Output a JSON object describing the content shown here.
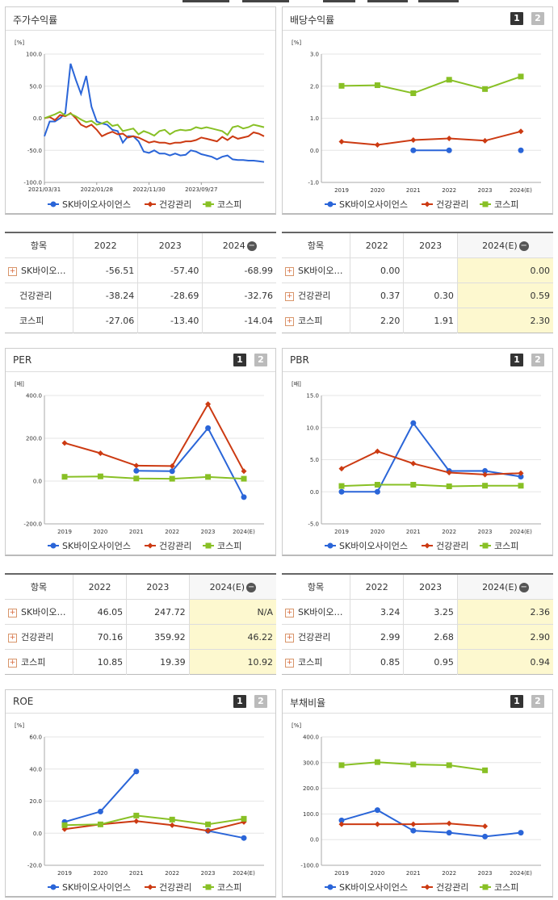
{
  "colors": {
    "sk": "#2a65d8",
    "health": "#cc3a12",
    "kospi": "#88c025"
  },
  "legend": [
    "SK바이오사이언스",
    "건강관리",
    "코스피"
  ],
  "stock": {
    "title": "주가수익률",
    "chart_data": {
      "type": "line",
      "unit": "[%]",
      "ylim": [
        -100,
        100
      ],
      "yticks": [
        100.0,
        50.0,
        0.0,
        -50.0,
        -100.0
      ],
      "xticks": [
        "2021/03/31",
        "2022/01/28",
        "2022/11/30",
        "2023/09/27"
      ],
      "xtick_pos": [
        0,
        50,
        100,
        150
      ],
      "x_max": 210,
      "series": [
        {
          "name": "SK바이오사이언스",
          "color": "#2a65d8",
          "x": [
            0,
            5,
            10,
            15,
            20,
            25,
            30,
            35,
            40,
            45,
            50,
            55,
            60,
            65,
            70,
            75,
            80,
            85,
            90,
            95,
            100,
            105,
            110,
            115,
            120,
            125,
            130,
            135,
            140,
            145,
            150,
            155,
            160,
            165,
            170,
            175,
            180,
            185,
            190,
            195,
            200,
            205,
            210
          ],
          "values": [
            -28,
            -5,
            -5,
            0,
            8,
            85,
            60,
            38,
            66,
            18,
            -5,
            -8,
            -10,
            -18,
            -20,
            -38,
            -28,
            -28,
            -36,
            -52,
            -54,
            -50,
            -55,
            -55,
            -58,
            -55,
            -58,
            -57,
            -50,
            -52,
            -56,
            -58,
            -60,
            -64,
            -60,
            -58,
            -64,
            -65,
            -65,
            -66,
            -66,
            -67,
            -68
          ]
        },
        {
          "name": "건강관리",
          "color": "#cc3a12",
          "x": [
            0,
            5,
            10,
            15,
            20,
            25,
            30,
            35,
            40,
            45,
            50,
            55,
            60,
            65,
            70,
            75,
            80,
            85,
            90,
            95,
            100,
            105,
            110,
            115,
            120,
            125,
            130,
            135,
            140,
            145,
            150,
            155,
            160,
            165,
            170,
            175,
            180,
            185,
            190,
            195,
            200,
            205,
            210
          ],
          "values": [
            0,
            2,
            -3,
            5,
            3,
            8,
            0,
            -10,
            -14,
            -10,
            -18,
            -28,
            -24,
            -21,
            -25,
            -24,
            -30,
            -28,
            -30,
            -34,
            -38,
            -36,
            -38,
            -38,
            -40,
            -38,
            -38,
            -36,
            -36,
            -34,
            -30,
            -32,
            -34,
            -36,
            -29,
            -34,
            -28,
            -32,
            -30,
            -28,
            -22,
            -24,
            -28
          ]
        },
        {
          "name": "코스피",
          "color": "#88c025",
          "x": [
            0,
            5,
            10,
            15,
            20,
            25,
            30,
            35,
            40,
            45,
            50,
            55,
            60,
            65,
            70,
            75,
            80,
            85,
            90,
            95,
            100,
            105,
            110,
            115,
            120,
            125,
            130,
            135,
            140,
            145,
            150,
            155,
            160,
            165,
            170,
            175,
            180,
            185,
            190,
            195,
            200,
            205,
            210
          ],
          "values": [
            0,
            3,
            6,
            10,
            4,
            7,
            3,
            -2,
            -6,
            -4,
            -10,
            -8,
            -5,
            -12,
            -10,
            -20,
            -18,
            -16,
            -25,
            -20,
            -23,
            -27,
            -20,
            -18,
            -25,
            -20,
            -18,
            -19,
            -18,
            -14,
            -16,
            -14,
            -16,
            -18,
            -20,
            -26,
            -14,
            -12,
            -16,
            -14,
            -10,
            -12,
            -14
          ]
        }
      ]
    },
    "table": {
      "header": [
        "항목",
        "2022",
        "2023",
        "2024"
      ],
      "rows": [
        {
          "label": "SK바이오…",
          "plus": true,
          "values": [
            "-56.51",
            "-57.40",
            "-68.99"
          ]
        },
        {
          "label": "건강관리",
          "plus": false,
          "values": [
            "-38.24",
            "-28.69",
            "-32.76"
          ]
        },
        {
          "label": "코스피",
          "plus": false,
          "values": [
            "-27.06",
            "-13.40",
            "-14.04"
          ]
        }
      ]
    }
  },
  "dividend": {
    "title": "배당수익률",
    "btn1": "1",
    "btn2": "2",
    "chart_data": {
      "type": "line",
      "unit": "[%]",
      "ylim": [
        -1,
        3
      ],
      "yticks": [
        3.0,
        2.0,
        1.0,
        0.0,
        -1.0
      ],
      "categories": [
        "2019",
        "2020",
        "2021",
        "2022",
        "2023",
        "2024(E)"
      ],
      "series": [
        {
          "name": "SK바이오사이언스",
          "color": "#2a65d8",
          "values": [
            null,
            null,
            0.0,
            0.0,
            null,
            0.0
          ]
        },
        {
          "name": "건강관리",
          "color": "#cc3a12",
          "values": [
            0.27,
            0.17,
            0.32,
            0.37,
            0.3,
            0.59
          ]
        },
        {
          "name": "코스피",
          "color": "#88c025",
          "values": [
            2.01,
            2.03,
            1.78,
            2.2,
            1.91,
            2.3
          ]
        }
      ]
    },
    "table": {
      "header": [
        "항목",
        "2022",
        "2023",
        "2024(E)"
      ],
      "rows": [
        {
          "label": "SK바이오…",
          "plus": true,
          "values": [
            "0.00",
            "",
            "0.00"
          ]
        },
        {
          "label": "건강관리",
          "plus": true,
          "values": [
            "0.37",
            "0.30",
            "0.59"
          ]
        },
        {
          "label": "코스피",
          "plus": true,
          "values": [
            "2.20",
            "1.91",
            "2.30"
          ]
        }
      ]
    }
  },
  "per": {
    "title": "PER",
    "btn1": "1",
    "btn2": "2",
    "chart_data": {
      "type": "line",
      "unit": "[배]",
      "ylim": [
        -200,
        400
      ],
      "yticks": [
        400.0,
        200.0,
        0.0,
        -200.0
      ],
      "categories": [
        "2019",
        "2020",
        "2021",
        "2022",
        "2023",
        "2024(E)"
      ],
      "series": [
        {
          "name": "SK바이오사이언스",
          "color": "#2a65d8",
          "values": [
            null,
            null,
            48,
            46.05,
            247.72,
            -75
          ]
        },
        {
          "name": "건강관리",
          "color": "#cc3a12",
          "values": [
            178,
            130,
            72,
            70.16,
            359.92,
            46.22
          ]
        },
        {
          "name": "코스피",
          "color": "#88c025",
          "values": [
            20,
            22,
            12,
            10.85,
            19.39,
            10.92
          ]
        }
      ]
    },
    "table": {
      "header": [
        "항목",
        "2022",
        "2023",
        "2024(E)"
      ],
      "rows": [
        {
          "label": "SK바이오…",
          "plus": true,
          "values": [
            "46.05",
            "247.72",
            "N/A"
          ]
        },
        {
          "label": "건강관리",
          "plus": true,
          "values": [
            "70.16",
            "359.92",
            "46.22"
          ]
        },
        {
          "label": "코스피",
          "plus": true,
          "values": [
            "10.85",
            "19.39",
            "10.92"
          ]
        }
      ]
    }
  },
  "pbr": {
    "title": "PBR",
    "btn1": "1",
    "btn2": "2",
    "chart_data": {
      "type": "line",
      "unit": "[배]",
      "ylim": [
        -5,
        15
      ],
      "yticks": [
        15.0,
        10.0,
        5.0,
        0.0,
        -5.0
      ],
      "categories": [
        "2019",
        "2020",
        "2021",
        "2022",
        "2023",
        "2024(E)"
      ],
      "series": [
        {
          "name": "SK바이오사이언스",
          "color": "#2a65d8",
          "values": [
            0.0,
            0.0,
            10.7,
            3.24,
            3.25,
            2.36
          ]
        },
        {
          "name": "건강관리",
          "color": "#cc3a12",
          "values": [
            3.6,
            6.3,
            4.4,
            2.99,
            2.68,
            2.9
          ]
        },
        {
          "name": "코스피",
          "color": "#88c025",
          "values": [
            0.9,
            1.1,
            1.1,
            0.85,
            0.95,
            0.94
          ]
        }
      ]
    },
    "table": {
      "header": [
        "항목",
        "2022",
        "2023",
        "2024(E)"
      ],
      "rows": [
        {
          "label": "SK바이오…",
          "plus": true,
          "values": [
            "3.24",
            "3.25",
            "2.36"
          ]
        },
        {
          "label": "건강관리",
          "plus": true,
          "values": [
            "2.99",
            "2.68",
            "2.90"
          ]
        },
        {
          "label": "코스피",
          "plus": true,
          "values": [
            "0.85",
            "0.95",
            "0.94"
          ]
        }
      ]
    }
  },
  "roe": {
    "title": "ROE",
    "btn1": "1",
    "btn2": "2",
    "chart_data": {
      "type": "line",
      "unit": "[%]",
      "ylim": [
        -20,
        60
      ],
      "yticks": [
        60.0,
        40.0,
        20.0,
        0.0,
        -20.0
      ],
      "categories": [
        "2019",
        "2020",
        "2021",
        "2022",
        "2023",
        "2024(E)"
      ],
      "series": [
        {
          "name": "SK바이오사이언스",
          "color": "#2a65d8",
          "values": [
            7,
            13.5,
            38.5,
            null,
            1.5,
            -3
          ]
        },
        {
          "name": "건강관리",
          "color": "#cc3a12",
          "values": [
            2.5,
            5.5,
            7.5,
            5,
            1.5,
            7
          ]
        },
        {
          "name": "코스피",
          "color": "#88c025",
          "values": [
            5,
            5.5,
            11,
            8.5,
            5.5,
            9
          ]
        }
      ]
    }
  },
  "debt": {
    "title": "부채비율",
    "btn1": "1",
    "btn2": "2",
    "chart_data": {
      "type": "line",
      "unit": "[%]",
      "ylim": [
        -100,
        400
      ],
      "yticks": [
        400.0,
        300.0,
        200.0,
        100.0,
        0.0,
        -100.0
      ],
      "categories": [
        "2019",
        "2020",
        "2021",
        "2022",
        "2023",
        "2024(E)"
      ],
      "series": [
        {
          "name": "SK바이오사이언스",
          "color": "#2a65d8",
          "values": [
            75,
            115,
            35,
            27,
            12,
            27
          ]
        },
        {
          "name": "건강관리",
          "color": "#cc3a12",
          "values": [
            60,
            60,
            60,
            63,
            52,
            null
          ]
        },
        {
          "name": "코스피",
          "color": "#88c025",
          "values": [
            290,
            302,
            293,
            290,
            270,
            null
          ]
        }
      ]
    }
  }
}
